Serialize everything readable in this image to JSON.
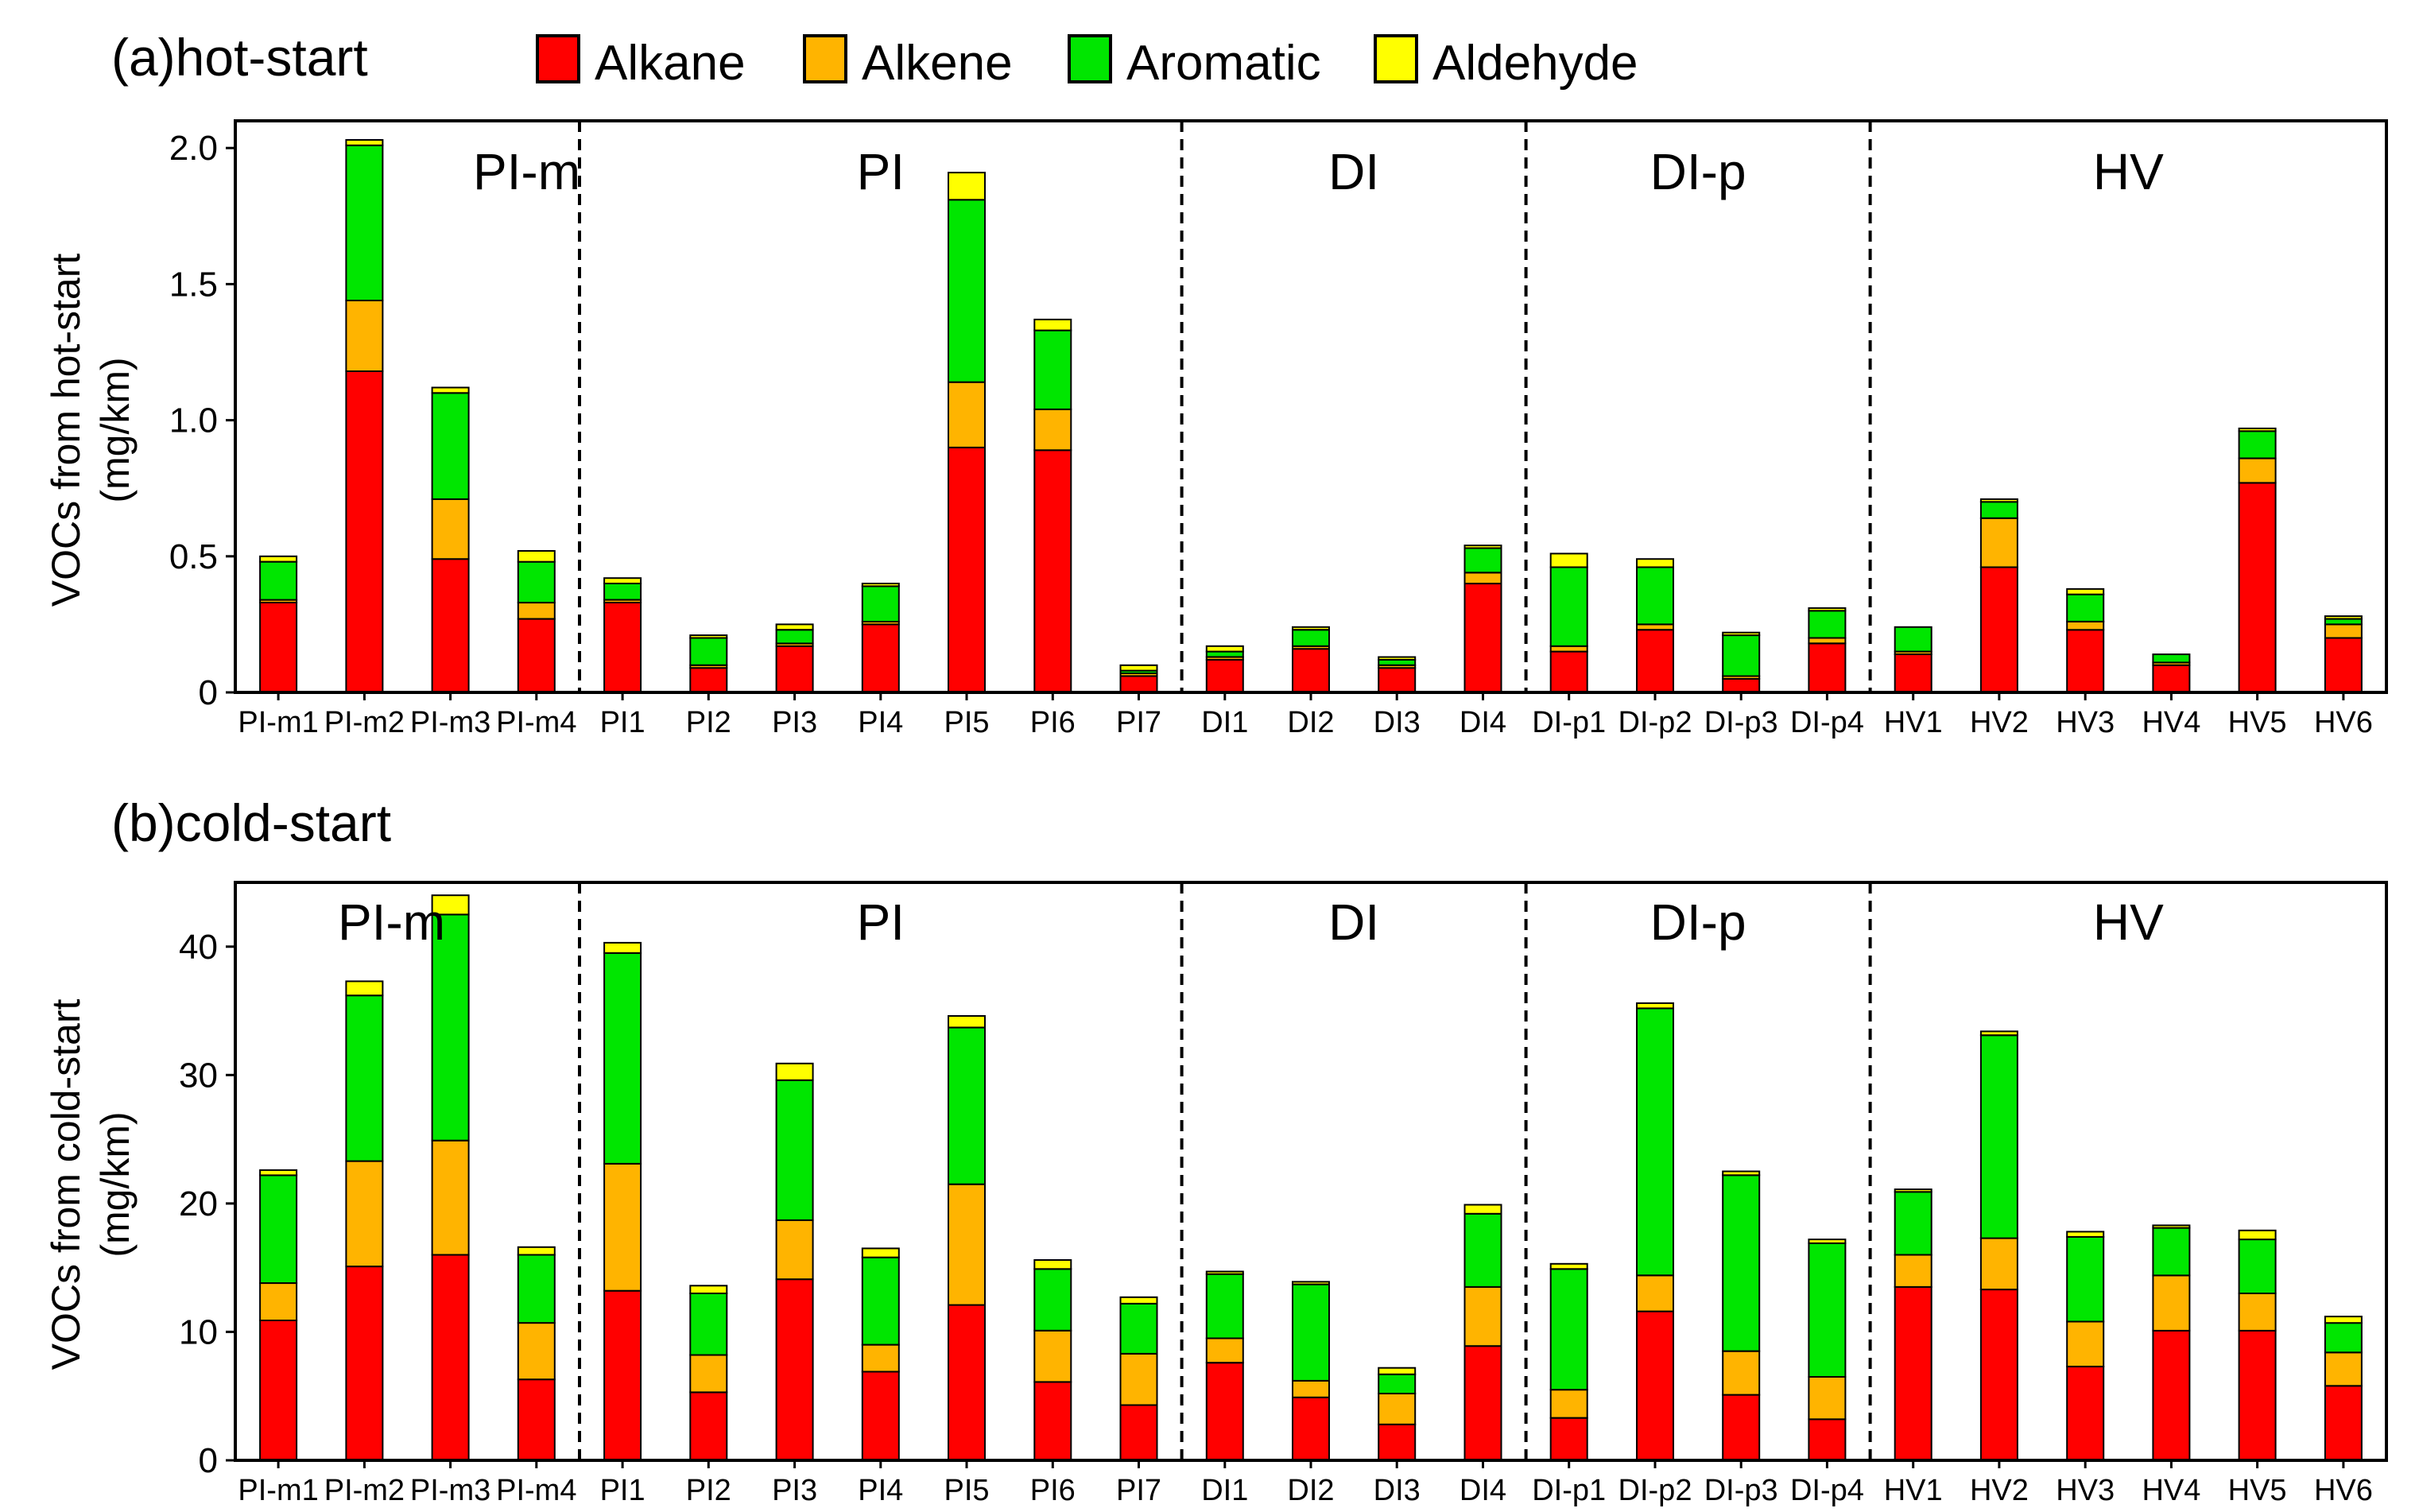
{
  "colors": {
    "Alkane": "#ff0000",
    "Alkene": "#ffb400",
    "Aromatic": "#00e600",
    "Aldehyde": "#ffff00",
    "outline": "#000000"
  },
  "legend": [
    "Alkane",
    "Alkene",
    "Aromatic",
    "Aldehyde"
  ],
  "chart_data": [
    {
      "type": "bar",
      "stacked": true,
      "title": "(a)hot-start",
      "ylabel_line1": "VOCs from hot-start",
      "ylabel_line2": "(mg/km)",
      "ylim": [
        0,
        2.1
      ],
      "yticks": [
        0,
        0.5,
        1.0,
        1.5,
        2.0
      ],
      "ytick_labels": [
        "0",
        "0.5",
        "1.0",
        "1.5",
        "2.0"
      ],
      "categories": [
        "PI-m1",
        "PI-m2",
        "PI-m3",
        "PI-m4",
        "PI1",
        "PI2",
        "PI3",
        "PI4",
        "PI5",
        "PI6",
        "PI7",
        "DI1",
        "DI2",
        "DI3",
        "DI4",
        "DI-p1",
        "DI-p2",
        "DI-p3",
        "DI-p4",
        "HV1",
        "HV2",
        "HV3",
        "HV4",
        "HV5",
        "HV6"
      ],
      "groups": [
        {
          "label": "PI-m",
          "start": 0,
          "end": 3
        },
        {
          "label": "PI",
          "start": 4,
          "end": 10
        },
        {
          "label": "DI",
          "start": 11,
          "end": 14
        },
        {
          "label": "DI-p",
          "start": 15,
          "end": 18
        },
        {
          "label": "HV",
          "start": 19,
          "end": 24
        }
      ],
      "series": [
        {
          "name": "Alkane",
          "values": [
            0.33,
            1.18,
            0.49,
            0.27,
            0.33,
            0.09,
            0.17,
            0.25,
            0.9,
            0.89,
            0.06,
            0.12,
            0.16,
            0.09,
            0.4,
            0.15,
            0.23,
            0.05,
            0.18,
            0.14,
            0.46,
            0.23,
            0.1,
            0.77,
            0.2
          ]
        },
        {
          "name": "Alkene",
          "values": [
            0.01,
            0.26,
            0.22,
            0.06,
            0.01,
            0.01,
            0.01,
            0.01,
            0.24,
            0.15,
            0.01,
            0.01,
            0.01,
            0.01,
            0.04,
            0.02,
            0.02,
            0.01,
            0.02,
            0.01,
            0.18,
            0.03,
            0.01,
            0.09,
            0.05
          ]
        },
        {
          "name": "Aromatic",
          "values": [
            0.14,
            0.57,
            0.39,
            0.15,
            0.06,
            0.1,
            0.05,
            0.13,
            0.67,
            0.29,
            0.01,
            0.02,
            0.06,
            0.02,
            0.09,
            0.29,
            0.21,
            0.15,
            0.1,
            0.09,
            0.06,
            0.1,
            0.03,
            0.1,
            0.02
          ]
        },
        {
          "name": "Aldehyde",
          "values": [
            0.02,
            0.02,
            0.02,
            0.04,
            0.02,
            0.01,
            0.02,
            0.01,
            0.1,
            0.04,
            0.02,
            0.02,
            0.01,
            0.01,
            0.01,
            0.05,
            0.03,
            0.01,
            0.01,
            0.0,
            0.01,
            0.02,
            0.0,
            0.01,
            0.01
          ]
        }
      ]
    },
    {
      "type": "bar",
      "stacked": true,
      "title": "(b)cold-start",
      "ylabel_line1": "VOCs from cold-start",
      "ylabel_line2": "(mg/km)",
      "ylim": [
        0,
        45
      ],
      "yticks": [
        0,
        10,
        20,
        30,
        40
      ],
      "ytick_labels": [
        "0",
        "10",
        "20",
        "30",
        "40"
      ],
      "categories": [
        "PI-m1",
        "PI-m2",
        "PI-m3",
        "PI-m4",
        "PI1",
        "PI2",
        "PI3",
        "PI4",
        "PI5",
        "PI6",
        "PI7",
        "DI1",
        "DI2",
        "DI3",
        "DI4",
        "DI-p1",
        "DI-p2",
        "DI-p3",
        "DI-p4",
        "HV1",
        "HV2",
        "HV3",
        "HV4",
        "HV5",
        "HV6"
      ],
      "groups": [
        {
          "label": "PI-m",
          "start": 0,
          "end": 3
        },
        {
          "label": "PI",
          "start": 4,
          "end": 10
        },
        {
          "label": "DI",
          "start": 11,
          "end": 14
        },
        {
          "label": "DI-p",
          "start": 15,
          "end": 18
        },
        {
          "label": "HV",
          "start": 19,
          "end": 24
        }
      ],
      "series": [
        {
          "name": "Alkane",
          "values": [
            10.9,
            15.1,
            16.0,
            6.3,
            13.2,
            5.3,
            14.1,
            6.9,
            12.1,
            6.1,
            4.3,
            7.6,
            4.9,
            2.8,
            8.9,
            3.3,
            11.6,
            5.1,
            3.2,
            13.5,
            13.3,
            7.3,
            10.1,
            10.1,
            5.8
          ]
        },
        {
          "name": "Alkene",
          "values": [
            2.9,
            8.2,
            8.9,
            4.4,
            9.9,
            2.9,
            4.6,
            2.1,
            9.4,
            4.0,
            4.0,
            1.9,
            1.3,
            2.4,
            4.6,
            2.2,
            2.8,
            3.4,
            3.3,
            2.5,
            4.0,
            3.5,
            4.3,
            2.9,
            2.6
          ]
        },
        {
          "name": "Aromatic",
          "values": [
            8.4,
            12.9,
            17.6,
            5.3,
            16.4,
            4.8,
            10.9,
            6.8,
            12.2,
            4.8,
            3.9,
            5.0,
            7.5,
            1.5,
            5.7,
            9.4,
            20.8,
            13.7,
            10.4,
            4.9,
            15.8,
            6.6,
            3.7,
            4.2,
            2.3
          ]
        },
        {
          "name": "Aldehyde",
          "values": [
            0.4,
            1.1,
            1.5,
            0.6,
            0.8,
            0.6,
            1.3,
            0.7,
            0.9,
            0.7,
            0.5,
            0.2,
            0.2,
            0.5,
            0.7,
            0.4,
            0.4,
            0.3,
            0.3,
            0.2,
            0.3,
            0.4,
            0.2,
            0.7,
            0.5
          ]
        }
      ]
    }
  ]
}
